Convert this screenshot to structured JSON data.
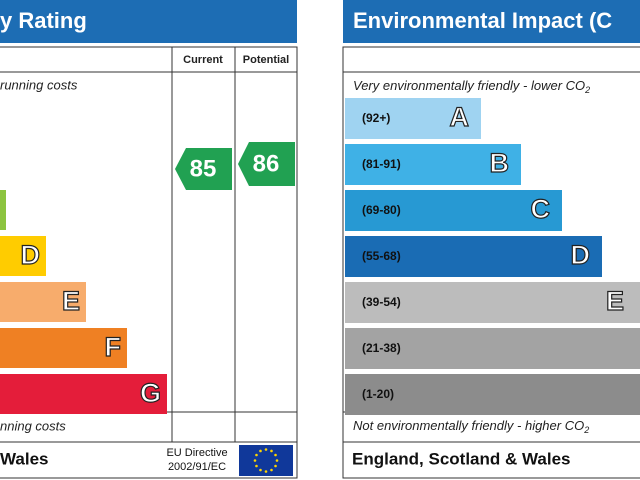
{
  "energy": {
    "title": "y Rating",
    "col_current": "Current",
    "col_potential": "Potential",
    "top_note": "running costs",
    "bottom_note": "nning costs",
    "bands": [
      "D",
      "E",
      "F",
      "G"
    ],
    "current": 85,
    "potential": 86,
    "footer": "Wales",
    "directive_1": "EU Directive",
    "directive_2": "2002/91/EC"
  },
  "environment": {
    "title": "Environmental Impact (C",
    "top_note": "Very environmentally friendly - lower CO",
    "bottom_note": "Not environmentally friendly - higher CO",
    "co2_sub": "2",
    "bands": [
      {
        "range": "(92+)",
        "letter": "A"
      },
      {
        "range": "(81-91)",
        "letter": "B"
      },
      {
        "range": "(69-80)",
        "letter": "C"
      },
      {
        "range": "(55-68)",
        "letter": "D"
      },
      {
        "range": "(39-54)",
        "letter": "E"
      },
      {
        "range": "(21-38)",
        "letter": ""
      },
      {
        "range": "(1-20)",
        "letter": ""
      }
    ],
    "footer": "England, Scotland & Wales"
  }
}
